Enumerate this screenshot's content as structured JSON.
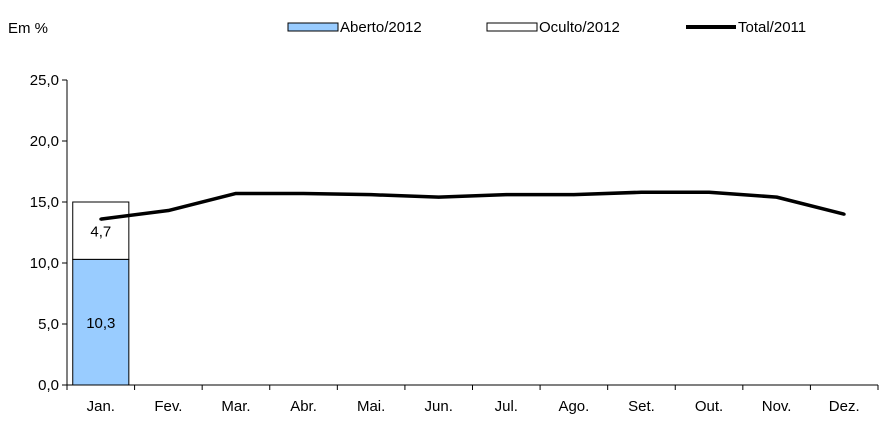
{
  "chart_data": {
    "type": "bar",
    "unit_label": "Em %",
    "categories": [
      "Jan.",
      "Fev.",
      "Mar.",
      "Abr.",
      "Mai.",
      "Jun.",
      "Jul.",
      "Ago.",
      "Set.",
      "Out.",
      "Nov.",
      "Dez."
    ],
    "ylim": [
      0,
      25
    ],
    "yticks": [
      "0,0",
      "5,0",
      "10,0",
      "15,0",
      "20,0",
      "25,0"
    ],
    "grid": false,
    "legend_position": "top",
    "series": [
      {
        "name": "Aberto/2012",
        "kind": "stacked-bar",
        "color": "#99ccff",
        "values": [
          10.3,
          null,
          null,
          null,
          null,
          null,
          null,
          null,
          null,
          null,
          null,
          null
        ],
        "labels": [
          "10,3"
        ]
      },
      {
        "name": "Oculto/2012",
        "kind": "stacked-bar",
        "color": "#ffffff",
        "values": [
          4.7,
          null,
          null,
          null,
          null,
          null,
          null,
          null,
          null,
          null,
          null,
          null
        ],
        "labels": [
          "4,7"
        ]
      },
      {
        "name": "Total/2011",
        "kind": "line",
        "color": "#000000",
        "values": [
          13.6,
          14.3,
          15.7,
          15.7,
          15.6,
          15.4,
          15.6,
          15.6,
          15.8,
          15.8,
          15.4,
          14.0
        ]
      }
    ]
  }
}
